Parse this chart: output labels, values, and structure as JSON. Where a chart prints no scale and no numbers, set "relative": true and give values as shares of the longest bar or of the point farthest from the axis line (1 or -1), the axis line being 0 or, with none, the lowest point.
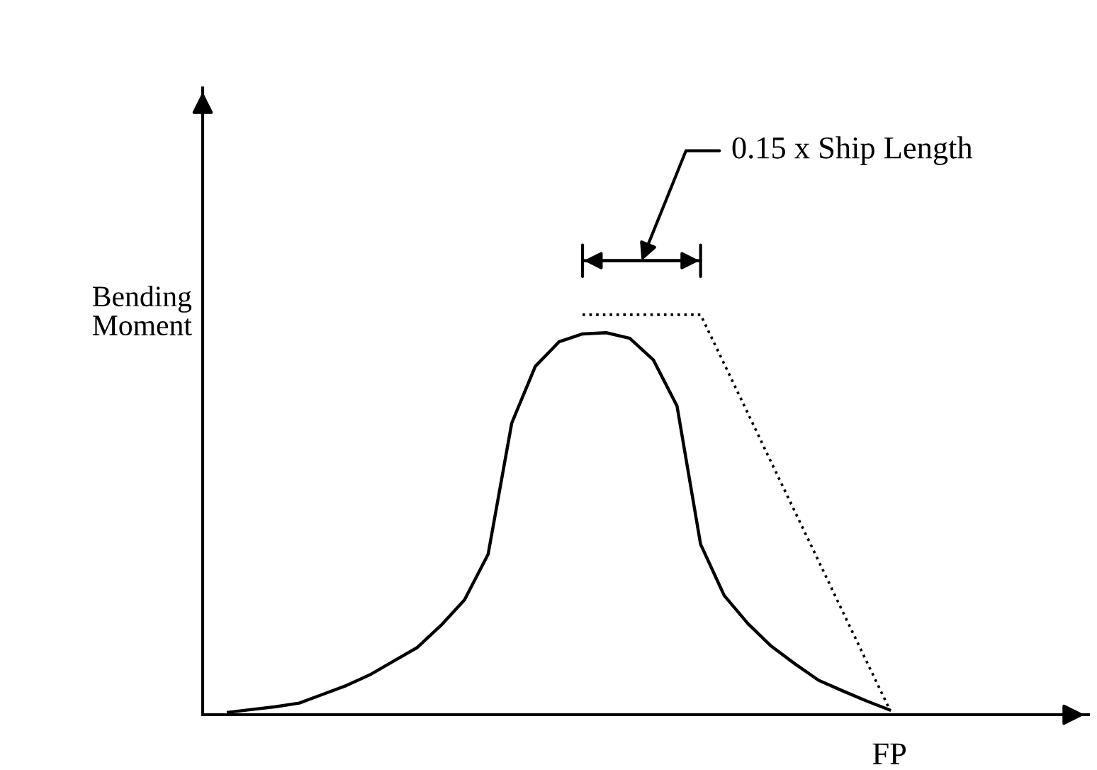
{
  "chart_data": {
    "type": "line",
    "relative": true,
    "ylabel": "Bending\nMoment",
    "marker": "none",
    "categories": [
      null,
      null,
      null,
      null,
      null,
      null,
      null,
      null,
      null,
      null,
      null,
      null,
      null,
      null,
      null,
      null,
      null,
      null,
      null,
      null,
      null,
      null,
      null,
      null,
      null,
      null,
      null,
      null,
      null
    ],
    "series": [
      {
        "color": "#000000",
        "line_style": "solid",
        "values": [
          0.006,
          0.013,
          0.02,
          0.029,
          0.051,
          0.073,
          0.1,
          0.134,
          0.168,
          0.223,
          0.287,
          0.401,
          0.729,
          0.871,
          0.932,
          0.952,
          0.955,
          0.941,
          0.887,
          0.772,
          0.426,
          0.298,
          0.228,
          0.171,
          0.127,
          0.086,
          0.06,
          0.035,
          0.012
        ]
      },
      {
        "color": "#000000",
        "line_style": "dotted",
        "values": [
          null,
          null,
          null,
          null,
          null,
          null,
          null,
          null,
          null,
          null,
          null,
          null,
          null,
          null,
          null,
          1,
          1,
          1,
          1,
          1,
          1,
          0.877,
          0.754,
          0.63,
          0.507,
          0.384,
          0.26,
          0.137,
          0.014
        ]
      }
    ],
    "annotations": [
      "0.15 x Ship Length",
      "FP"
    ]
  }
}
